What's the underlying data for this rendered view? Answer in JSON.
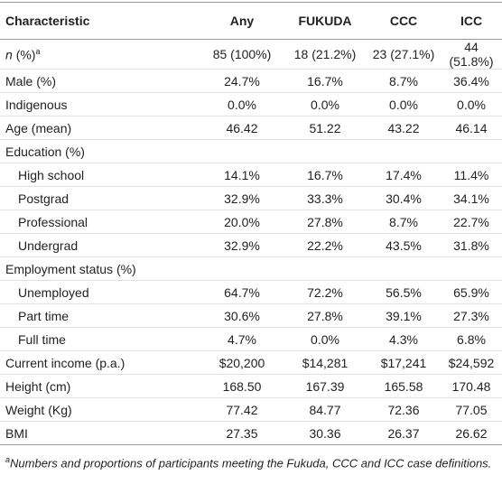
{
  "table": {
    "header": [
      "Characteristic",
      "Any",
      "FUKUDA",
      "CCC",
      "ICC"
    ],
    "count_row": {
      "symbol": "n",
      "label": "(%)",
      "values": [
        "85 (100%)",
        "18 (21.2%)",
        "23 (27.1%)",
        "44 (51.8%)"
      ]
    },
    "rows": [
      {
        "label": "Male (%)",
        "values": [
          "24.7%",
          "16.7%",
          "8.7%",
          "36.4%"
        ]
      },
      {
        "label": "Indigenous",
        "values": [
          "0.0%",
          "0.0%",
          "0.0%",
          "0.0%"
        ]
      },
      {
        "label": "Age (mean)",
        "values": [
          "46.42",
          "51.22",
          "43.22",
          "46.14"
        ]
      },
      {
        "label": "Education (%)",
        "items": [
          {
            "label": "High school",
            "values": [
              "14.1%",
              "16.7%",
              "17.4%",
              "11.4%"
            ]
          },
          {
            "label": "Postgrad",
            "values": [
              "32.9%",
              "33.3%",
              "30.4%",
              "34.1%"
            ]
          },
          {
            "label": "Professional",
            "values": [
              "20.0%",
              "27.8%",
              "8.7%",
              "22.7%"
            ]
          },
          {
            "label": "Undergrad",
            "values": [
              "32.9%",
              "22.2%",
              "43.5%",
              "31.8%"
            ]
          }
        ]
      },
      {
        "label": "Employment status (%)",
        "items": [
          {
            "label": "Unemployed",
            "values": [
              "64.7%",
              "72.2%",
              "56.5%",
              "65.9%"
            ]
          },
          {
            "label": "Part time",
            "values": [
              "30.6%",
              "27.8%",
              "39.1%",
              "27.3%"
            ]
          },
          {
            "label": "Full time",
            "values": [
              "4.7%",
              "0.0%",
              "4.3%",
              "6.8%"
            ]
          }
        ]
      },
      {
        "label": "Current income (p.a.)",
        "values": [
          "$20,200",
          "$14,281",
          "$17,241",
          "$24,592"
        ]
      },
      {
        "label": "Height (cm)",
        "values": [
          "168.50",
          "167.39",
          "165.58",
          "170.48"
        ]
      },
      {
        "label": "Weight (Kg)",
        "values": [
          "77.42",
          "84.77",
          "72.36",
          "77.05"
        ]
      },
      {
        "label": "BMI",
        "values": [
          "27.35",
          "30.36",
          "26.37",
          "26.62"
        ]
      }
    ]
  },
  "footnote": {
    "mark": "a",
    "text": "Numbers and proportions of participants meeting the Fukuda, CCC and ICC case definitions."
  }
}
